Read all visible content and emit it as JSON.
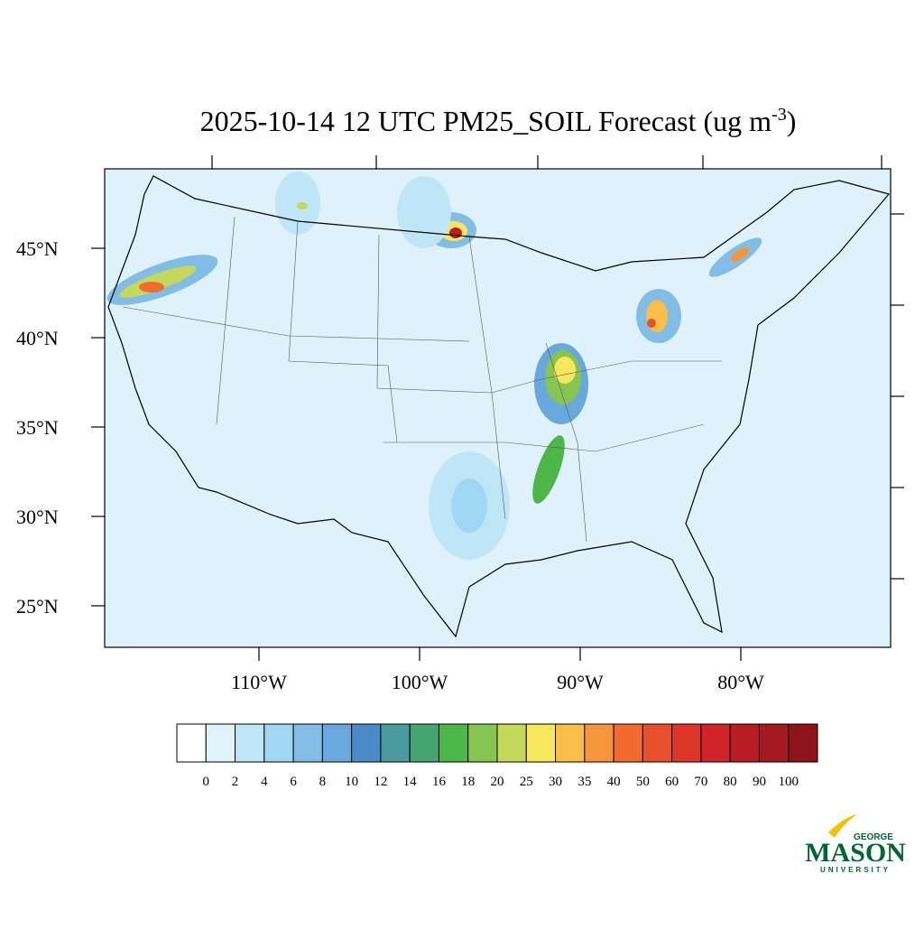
{
  "title": {
    "main": "2025-10-14 12 UTC PM25_SOIL Forecast (ug m",
    "superscript": "-3",
    "end": ")"
  },
  "map": {
    "lat_labels": [
      "45°N",
      "40°N",
      "35°N",
      "30°N",
      "25°N"
    ],
    "lon_labels": [
      "110°W",
      "100°W",
      "90°W",
      "80°W"
    ]
  },
  "colorbar": {
    "levels": [
      0,
      2,
      4,
      6,
      8,
      10,
      12,
      14,
      16,
      18,
      20,
      25,
      30,
      35,
      40,
      50,
      60,
      70,
      80,
      90,
      100
    ],
    "colors": [
      "#ffffff",
      "#e0f3fb",
      "#bfe6f7",
      "#a0d8f3",
      "#82bde6",
      "#68a8dc",
      "#4a8ac8",
      "#4a9a9e",
      "#46a471",
      "#4cb648",
      "#86c650",
      "#c4d85a",
      "#f7e75c",
      "#f8be4a",
      "#f6963c",
      "#f26a2e",
      "#e8502c",
      "#db3627",
      "#d0232a",
      "#b81c25",
      "#a41a20",
      "#8c1419"
    ]
  },
  "logo": {
    "top": "GEORGE",
    "name": "MASON",
    "bottom": "UNIVERSITY"
  }
}
